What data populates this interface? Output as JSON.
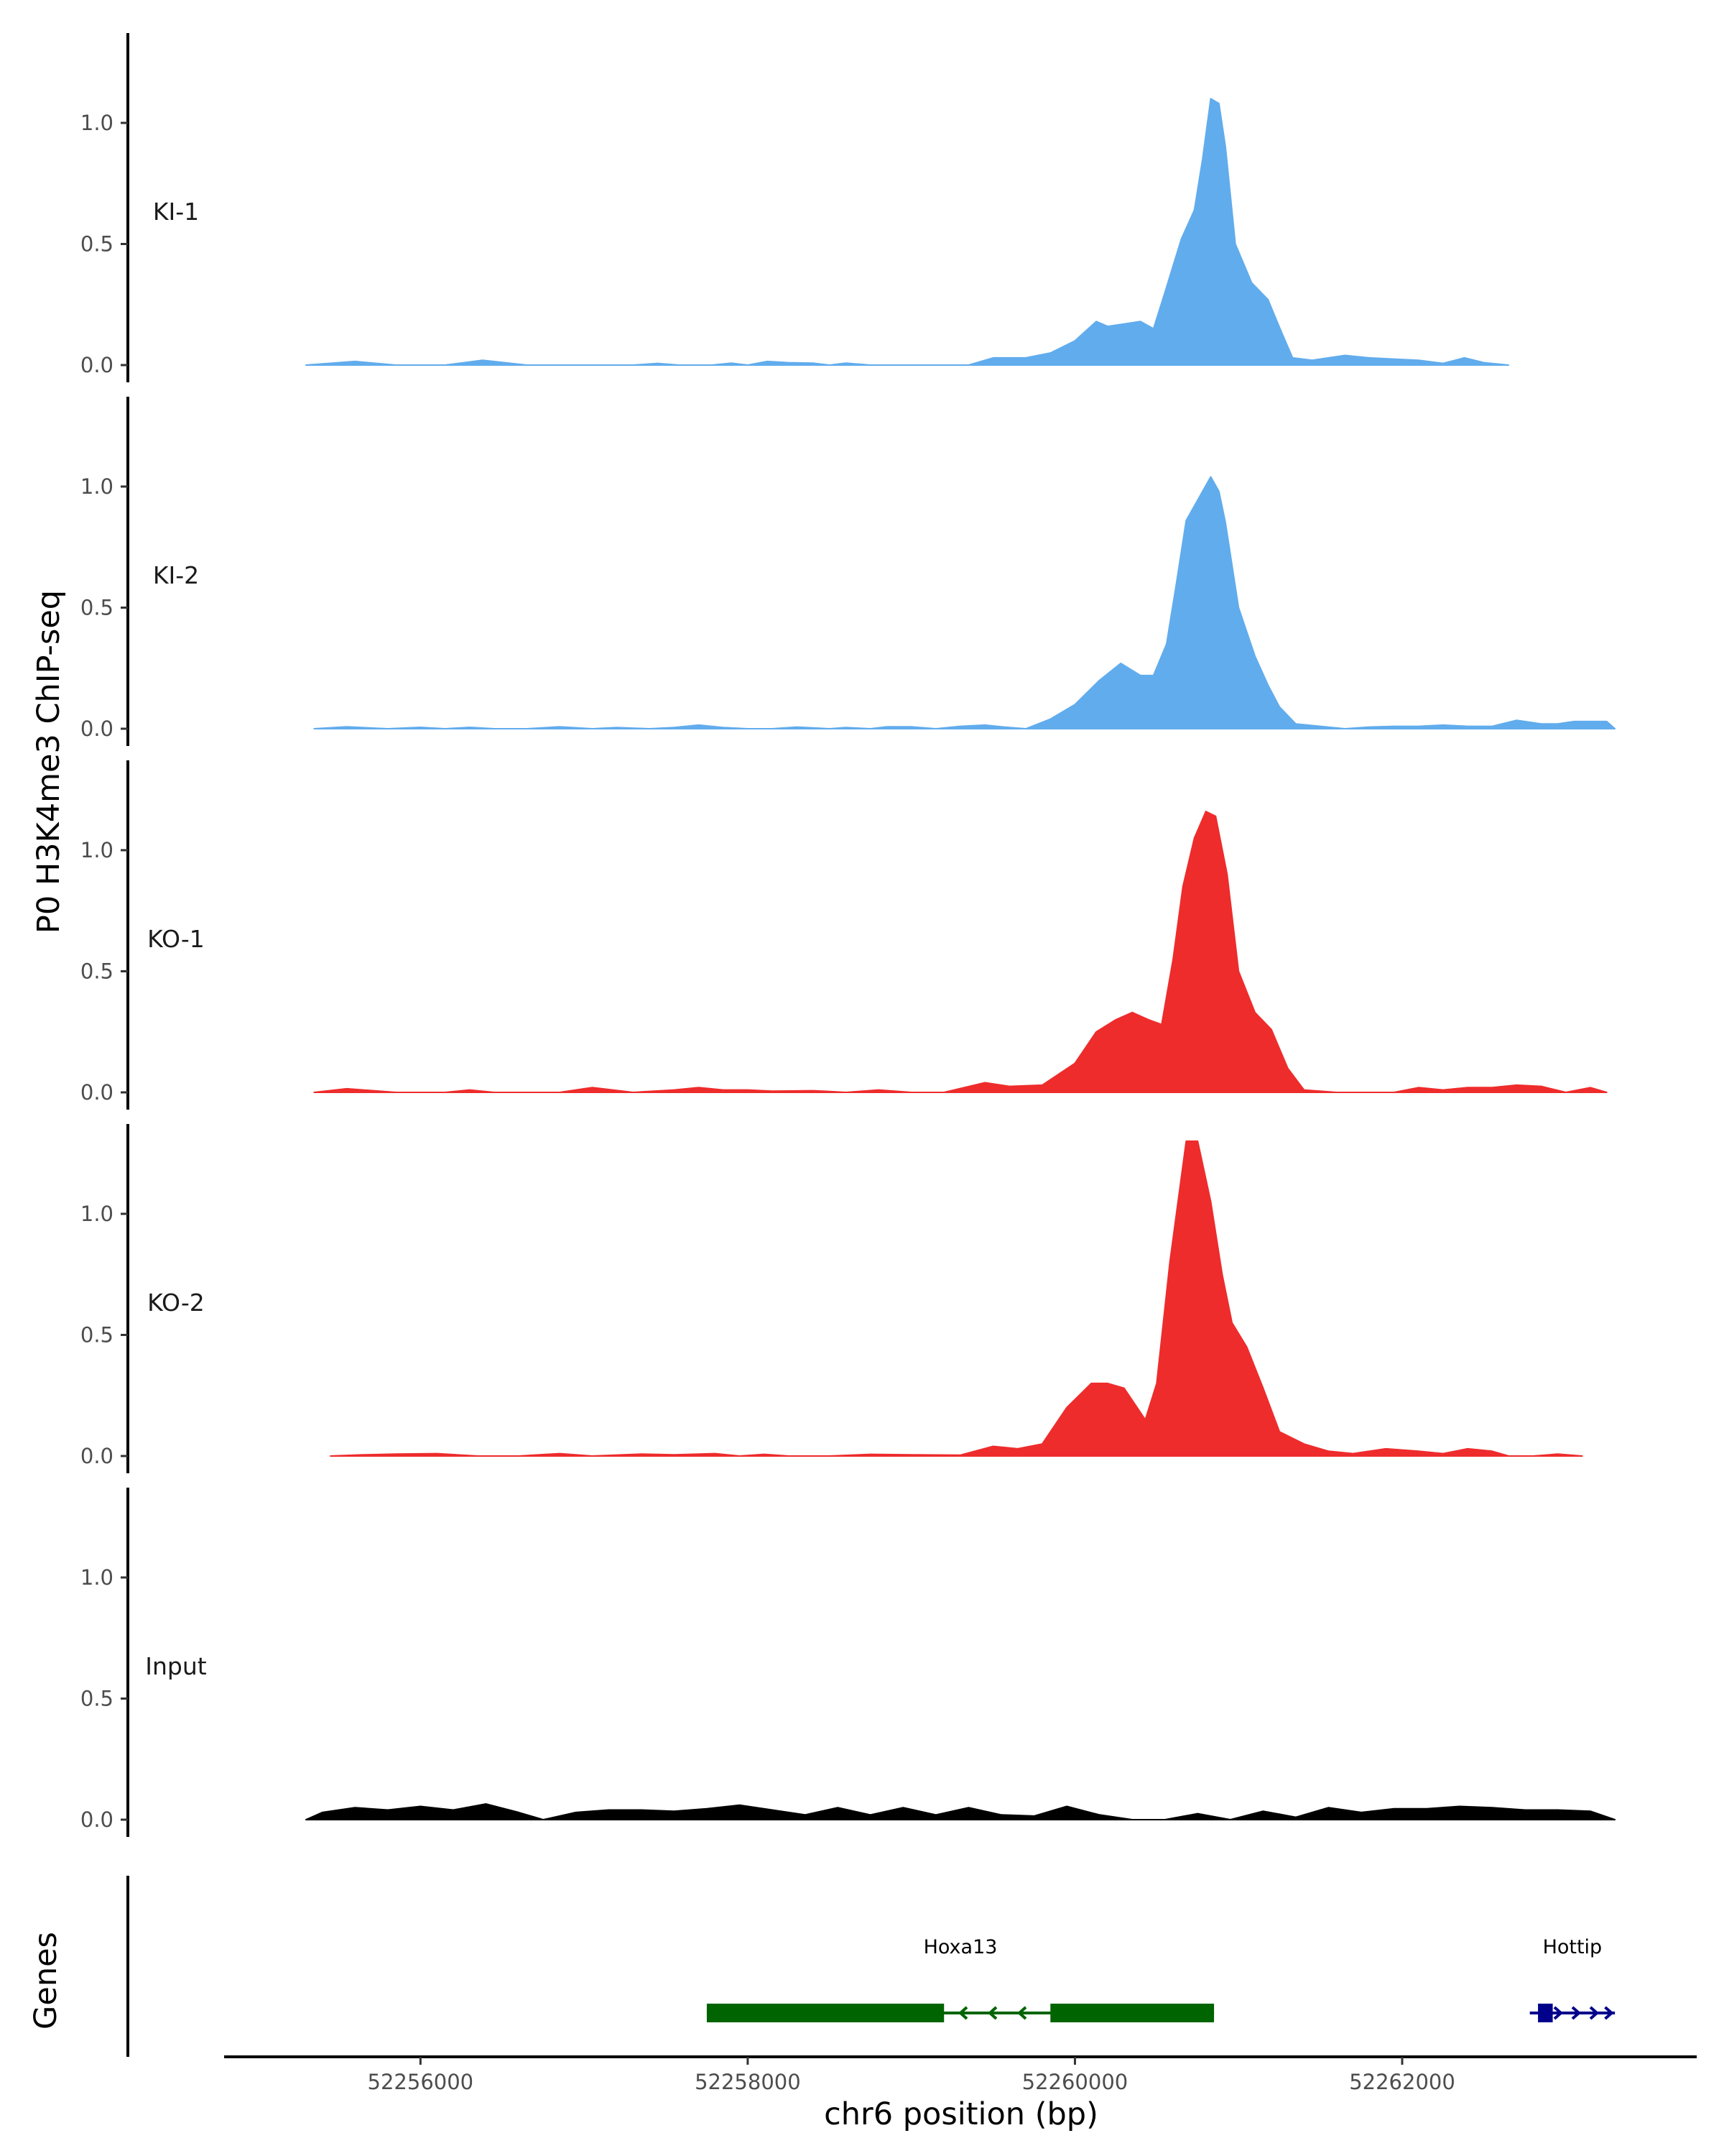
{
  "chart_data": {
    "type": "area",
    "title": "",
    "ylabel": "P0 H3K4me3 ChIP-seq",
    "xlabel": "chr6 position (bp)",
    "genes_label": "Genes",
    "x_range": [
      52254800,
      52263800
    ],
    "ylim": [
      0,
      1.37
    ],
    "y_ticks": [
      0.0,
      0.5,
      1.0
    ],
    "y_tick_labels": [
      "0.0",
      "0.5",
      "1.0"
    ],
    "x_ticks": [
      52256000,
      52258000,
      52260000,
      52262000
    ],
    "x_tick_labels": [
      "52256000",
      "52258000",
      "52260000",
      "52262000"
    ],
    "series": [
      {
        "name": "KI-1",
        "color": "#61aced",
        "points": [
          [
            52255300,
            0
          ],
          [
            52255600,
            0.015
          ],
          [
            52255850,
            0
          ],
          [
            52256150,
            0
          ],
          [
            52256380,
            0.02
          ],
          [
            52256650,
            0
          ],
          [
            52257300,
            0
          ],
          [
            52257450,
            0.007
          ],
          [
            52257580,
            0
          ],
          [
            52257780,
            0
          ],
          [
            52257900,
            0.008
          ],
          [
            52258000,
            0
          ],
          [
            52258120,
            0.015
          ],
          [
            52258250,
            0.01
          ],
          [
            52258400,
            0.008
          ],
          [
            52258500,
            0
          ],
          [
            52258600,
            0.008
          ],
          [
            52258750,
            0
          ],
          [
            52259350,
            0
          ],
          [
            52259500,
            0.03
          ],
          [
            52259700,
            0.03
          ],
          [
            52259850,
            0.05
          ],
          [
            52260000,
            0.1
          ],
          [
            52260130,
            0.18
          ],
          [
            52260200,
            0.16
          ],
          [
            52260300,
            0.17
          ],
          [
            52260400,
            0.18
          ],
          [
            52260480,
            0.15
          ],
          [
            52260550,
            0.3
          ],
          [
            52260650,
            0.52
          ],
          [
            52260730,
            0.64
          ],
          [
            52260780,
            0.85
          ],
          [
            52260830,
            1.1
          ],
          [
            52260880,
            1.08
          ],
          [
            52260920,
            0.9
          ],
          [
            52260980,
            0.5
          ],
          [
            52261080,
            0.34
          ],
          [
            52261180,
            0.27
          ],
          [
            52261260,
            0.14
          ],
          [
            52261330,
            0.03
          ],
          [
            52261450,
            0.02
          ],
          [
            52261550,
            0.03
          ],
          [
            52261650,
            0.04
          ],
          [
            52261800,
            0.03
          ],
          [
            52261950,
            0.025
          ],
          [
            52262100,
            0.02
          ],
          [
            52262250,
            0.007
          ],
          [
            52262380,
            0.03
          ],
          [
            52262500,
            0.01
          ],
          [
            52262650,
            0
          ]
        ]
      },
      {
        "name": "KI-2",
        "color": "#61aced",
        "points": [
          [
            52255350,
            0
          ],
          [
            52255550,
            0.008
          ],
          [
            52255800,
            0
          ],
          [
            52256000,
            0.006
          ],
          [
            52256150,
            0
          ],
          [
            52256300,
            0.006
          ],
          [
            52256450,
            0
          ],
          [
            52256650,
            0
          ],
          [
            52256850,
            0.008
          ],
          [
            52257050,
            0
          ],
          [
            52257200,
            0.005
          ],
          [
            52257400,
            0
          ],
          [
            52257550,
            0.005
          ],
          [
            52257700,
            0.015
          ],
          [
            52257850,
            0.005
          ],
          [
            52258000,
            0
          ],
          [
            52258150,
            0
          ],
          [
            52258300,
            0.007
          ],
          [
            52258500,
            0
          ],
          [
            52258600,
            0.005
          ],
          [
            52258750,
            0
          ],
          [
            52258850,
            0.008
          ],
          [
            52259000,
            0.008
          ],
          [
            52259150,
            0
          ],
          [
            52259300,
            0.01
          ],
          [
            52259450,
            0.015
          ],
          [
            52259600,
            0.005
          ],
          [
            52259700,
            0
          ],
          [
            52259850,
            0.04
          ],
          [
            52260000,
            0.1
          ],
          [
            52260150,
            0.2
          ],
          [
            52260280,
            0.27
          ],
          [
            52260400,
            0.22
          ],
          [
            52260480,
            0.22
          ],
          [
            52260560,
            0.35
          ],
          [
            52260620,
            0.6
          ],
          [
            52260680,
            0.86
          ],
          [
            52260780,
            0.98
          ],
          [
            52260830,
            1.04
          ],
          [
            52260880,
            0.98
          ],
          [
            52260920,
            0.85
          ],
          [
            52261000,
            0.5
          ],
          [
            52261100,
            0.3
          ],
          [
            52261180,
            0.18
          ],
          [
            52261250,
            0.09
          ],
          [
            52261350,
            0.02
          ],
          [
            52261500,
            0.01
          ],
          [
            52261650,
            0
          ],
          [
            52261800,
            0.007
          ],
          [
            52261950,
            0.01
          ],
          [
            52262100,
            0.01
          ],
          [
            52262250,
            0.015
          ],
          [
            52262400,
            0.01
          ],
          [
            52262550,
            0.01
          ],
          [
            52262700,
            0.035
          ],
          [
            52262850,
            0.02
          ],
          [
            52262950,
            0.02
          ],
          [
            52263050,
            0.03
          ],
          [
            52263250,
            0.03
          ],
          [
            52263300,
            0
          ]
        ]
      },
      {
        "name": "KO-1",
        "color": "#ee2c2c",
        "points": [
          [
            52255350,
            0
          ],
          [
            52255550,
            0.015
          ],
          [
            52255850,
            0
          ],
          [
            52256150,
            0
          ],
          [
            52256300,
            0.01
          ],
          [
            52256450,
            0
          ],
          [
            52256850,
            0
          ],
          [
            52257050,
            0.02
          ],
          [
            52257300,
            0
          ],
          [
            52257550,
            0.01
          ],
          [
            52257700,
            0.02
          ],
          [
            52257850,
            0.01
          ],
          [
            52258000,
            0.01
          ],
          [
            52258150,
            0.005
          ],
          [
            52258400,
            0.007
          ],
          [
            52258600,
            0
          ],
          [
            52258800,
            0.01
          ],
          [
            52259000,
            0
          ],
          [
            52259200,
            0
          ],
          [
            52259450,
            0.04
          ],
          [
            52259600,
            0.025
          ],
          [
            52259800,
            0.03
          ],
          [
            52260000,
            0.12
          ],
          [
            52260130,
            0.25
          ],
          [
            52260250,
            0.3
          ],
          [
            52260350,
            0.33
          ],
          [
            52260450,
            0.3
          ],
          [
            52260530,
            0.28
          ],
          [
            52260600,
            0.55
          ],
          [
            52260660,
            0.85
          ],
          [
            52260730,
            1.05
          ],
          [
            52260800,
            1.16
          ],
          [
            52260860,
            1.14
          ],
          [
            52260930,
            0.9
          ],
          [
            52261000,
            0.5
          ],
          [
            52261100,
            0.33
          ],
          [
            52261200,
            0.26
          ],
          [
            52261300,
            0.1
          ],
          [
            52261400,
            0.01
          ],
          [
            52261600,
            0
          ],
          [
            52261950,
            0
          ],
          [
            52262100,
            0.02
          ],
          [
            52262250,
            0.01
          ],
          [
            52262400,
            0.02
          ],
          [
            52262550,
            0.02
          ],
          [
            52262700,
            0.03
          ],
          [
            52262850,
            0.025
          ],
          [
            52263000,
            0
          ],
          [
            52263150,
            0.02
          ],
          [
            52263250,
            0
          ]
        ]
      },
      {
        "name": "KO-2",
        "color": "#ee2c2c",
        "points": [
          [
            52255450,
            0
          ],
          [
            52255650,
            0.005
          ],
          [
            52255850,
            0.008
          ],
          [
            52256100,
            0.01
          ],
          [
            52256350,
            0
          ],
          [
            52256600,
            0
          ],
          [
            52256850,
            0.01
          ],
          [
            52257050,
            0
          ],
          [
            52257350,
            0.008
          ],
          [
            52257550,
            0.005
          ],
          [
            52257800,
            0.01
          ],
          [
            52257950,
            0
          ],
          [
            52258100,
            0.007
          ],
          [
            52258250,
            0
          ],
          [
            52258500,
            0
          ],
          [
            52258750,
            0.007
          ],
          [
            52259000,
            0.005
          ],
          [
            52259300,
            0.004
          ],
          [
            52259500,
            0.04
          ],
          [
            52259650,
            0.03
          ],
          [
            52259800,
            0.05
          ],
          [
            52259950,
            0.2
          ],
          [
            52260100,
            0.3
          ],
          [
            52260200,
            0.3
          ],
          [
            52260300,
            0.28
          ],
          [
            52260380,
            0.2
          ],
          [
            52260430,
            0.15
          ],
          [
            52260500,
            0.3
          ],
          [
            52260580,
            0.8
          ],
          [
            52260680,
            1.3
          ],
          [
            52260750,
            1.3
          ],
          [
            52260830,
            1.05
          ],
          [
            52260900,
            0.75
          ],
          [
            52260960,
            0.55
          ],
          [
            52261050,
            0.45
          ],
          [
            52261150,
            0.28
          ],
          [
            52261250,
            0.1
          ],
          [
            52261400,
            0.05
          ],
          [
            52261550,
            0.02
          ],
          [
            52261700,
            0.01
          ],
          [
            52261900,
            0.03
          ],
          [
            52262100,
            0.02
          ],
          [
            52262250,
            0.01
          ],
          [
            52262400,
            0.03
          ],
          [
            52262550,
            0.02
          ],
          [
            52262650,
            0
          ],
          [
            52262800,
            0
          ],
          [
            52262950,
            0.008
          ],
          [
            52263100,
            0
          ]
        ]
      },
      {
        "name": "Input",
        "color": "#000000",
        "points": [
          [
            52255300,
            0
          ],
          [
            52255400,
            0.03
          ],
          [
            52255600,
            0.05
          ],
          [
            52255800,
            0.04
          ],
          [
            52256000,
            0.055
          ],
          [
            52256200,
            0.04
          ],
          [
            52256400,
            0.065
          ],
          [
            52256600,
            0.03
          ],
          [
            52256750,
            0
          ],
          [
            52256950,
            0.03
          ],
          [
            52257150,
            0.04
          ],
          [
            52257350,
            0.04
          ],
          [
            52257550,
            0.035
          ],
          [
            52257750,
            0.045
          ],
          [
            52257950,
            0.06
          ],
          [
            52258150,
            0.04
          ],
          [
            52258350,
            0.02
          ],
          [
            52258550,
            0.05
          ],
          [
            52258750,
            0.02
          ],
          [
            52258950,
            0.05
          ],
          [
            52259150,
            0.02
          ],
          [
            52259350,
            0.05
          ],
          [
            52259550,
            0.02
          ],
          [
            52259750,
            0.015
          ],
          [
            52259950,
            0.055
          ],
          [
            52260150,
            0.02
          ],
          [
            52260350,
            0
          ],
          [
            52260550,
            0
          ],
          [
            52260750,
            0.025
          ],
          [
            52260950,
            0
          ],
          [
            52261150,
            0.035
          ],
          [
            52261350,
            0.01
          ],
          [
            52261550,
            0.05
          ],
          [
            52261750,
            0.03
          ],
          [
            52261950,
            0.045
          ],
          [
            52262150,
            0.045
          ],
          [
            52262350,
            0.055
          ],
          [
            52262550,
            0.05
          ],
          [
            52262750,
            0.04
          ],
          [
            52262950,
            0.04
          ],
          [
            52263150,
            0.035
          ],
          [
            52263300,
            0
          ]
        ]
      }
    ],
    "genes": [
      {
        "name": "Hoxa13",
        "color": "#006400",
        "start": 52257750,
        "end": 52260850,
        "strand": "-",
        "exons": [
          [
            52257750,
            52259200
          ],
          [
            52259850,
            52260850
          ]
        ],
        "arrows": [
          52259300,
          52259480,
          52259660
        ]
      },
      {
        "name": "Hottip",
        "color": "#00008b",
        "start": 52262780,
        "end": 52263300,
        "strand": "+",
        "exons": [
          [
            52262830,
            52262920
          ]
        ],
        "arrows": [
          52262970,
          52263080,
          52263190,
          52263280
        ]
      }
    ]
  }
}
